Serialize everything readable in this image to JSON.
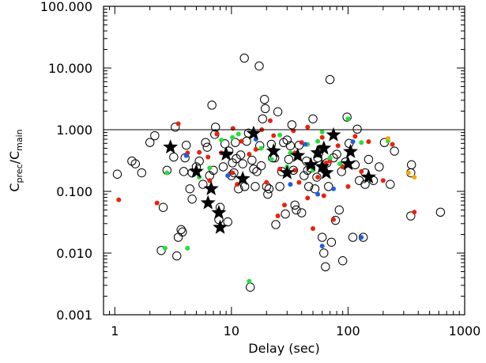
{
  "chart_data": {
    "type": "scatter",
    "x_scale": "log",
    "y_scale": "log",
    "xlim": [
      0.8,
      1000
    ],
    "ylim": [
      0.001,
      100
    ],
    "grid": false,
    "xlabel": "Delay (sec)",
    "ylabel": {
      "base": "C",
      "sub1": "prec",
      "sep": "/C",
      "sub2": "main"
    },
    "x_ticks": [
      {
        "value": 1,
        "label": "1"
      },
      {
        "value": 10,
        "label": "10"
      },
      {
        "value": 100,
        "label": "100"
      },
      {
        "value": 1000,
        "label": "1000"
      }
    ],
    "y_ticks": [
      {
        "value": 0.001,
        "label": "0.001"
      },
      {
        "value": 0.01,
        "label": "0.010"
      },
      {
        "value": 0.1,
        "label": "0.100"
      },
      {
        "value": 1,
        "label": "1.000"
      },
      {
        "value": 10,
        "label": "10.000"
      },
      {
        "value": 100,
        "label": "100.000"
      }
    ],
    "reference_line": {
      "y": 1
    },
    "colors": {
      "red": "#e8220e",
      "green": "#22e03c",
      "blue": "#1f5fe0",
      "orange": "#f5a800",
      "black": "#000000"
    },
    "series": [
      {
        "marker": "open-circle",
        "color": "#000000",
        "points": [
          [
            1.05,
            0.19
          ],
          [
            1.4,
            0.31
          ],
          [
            1.5,
            0.28
          ],
          [
            1.7,
            0.2
          ],
          [
            2,
            0.62
          ],
          [
            2.2,
            0.8
          ],
          [
            2.6,
            0.055
          ],
          [
            2.5,
            0.011
          ],
          [
            2.8,
            0.22
          ],
          [
            3.2,
            0.36
          ],
          [
            3.3,
            1.1
          ],
          [
            3.5,
            0.018
          ],
          [
            3.4,
            0.009
          ],
          [
            3.7,
            0.024
          ],
          [
            3.8,
            0.022
          ],
          [
            3.9,
            0.21
          ],
          [
            4,
            0.35
          ],
          [
            4.1,
            0.56
          ],
          [
            4.4,
            0.11
          ],
          [
            4.6,
            0.075
          ],
          [
            4.6,
            0.2
          ],
          [
            5,
            0.25
          ],
          [
            5.3,
            0.31
          ],
          [
            5.7,
            0.13
          ],
          [
            6,
            0.62
          ],
          [
            6.2,
            0.52
          ],
          [
            6.5,
            0.18
          ],
          [
            6.8,
            2.5
          ],
          [
            7,
            0.22
          ],
          [
            7.2,
            0.84
          ],
          [
            7.3,
            1.1
          ],
          [
            7.8,
            0.035
          ],
          [
            8,
            0.055
          ],
          [
            8.5,
            0.25
          ],
          [
            8.8,
            0.59
          ],
          [
            9.3,
            0.032
          ],
          [
            9.5,
            0.45
          ],
          [
            10,
            0.18
          ],
          [
            10.2,
            0.29
          ],
          [
            10.5,
            0.2
          ],
          [
            10.8,
            0.62
          ],
          [
            11,
            0.34
          ],
          [
            11.5,
            0.11
          ],
          [
            12,
            0.39
          ],
          [
            12.5,
            0.28
          ],
          [
            12.9,
            14.5
          ],
          [
            13,
            0.12
          ],
          [
            13.5,
            0.65
          ],
          [
            14,
            0.88
          ],
          [
            14.5,
            0.0028
          ],
          [
            15,
            0.32
          ],
          [
            15.5,
            0.23
          ],
          [
            16,
            0.12
          ],
          [
            16.5,
            0.21
          ],
          [
            17.3,
            10.8
          ],
          [
            17.5,
            0.55
          ],
          [
            18,
            0.26
          ],
          [
            18.5,
            1.5
          ],
          [
            19.2,
            3.1
          ],
          [
            19.5,
            2.2
          ],
          [
            20,
            0.12
          ],
          [
            20.5,
            0.09
          ],
          [
            21,
            0.11
          ],
          [
            22,
            0.58
          ],
          [
            22.5,
            0.35
          ],
          [
            23.5,
            0.35
          ],
          [
            24,
            0.029
          ],
          [
            25,
            1.95
          ],
          [
            26,
            0.12
          ],
          [
            27,
            0.21
          ],
          [
            28,
            0.62
          ],
          [
            29,
            0.043
          ],
          [
            30,
            0.68
          ],
          [
            31,
            0.33
          ],
          [
            32,
            0.55
          ],
          [
            33,
            1.2
          ],
          [
            34,
            0.22
          ],
          [
            35,
            0.06
          ],
          [
            36,
            0.05
          ],
          [
            38,
            0.56
          ],
          [
            40,
            0.045
          ],
          [
            42,
            0.18
          ],
          [
            44,
            0.31
          ],
          [
            46,
            0.12
          ],
          [
            48,
            0.24
          ],
          [
            50,
            1.5
          ],
          [
            52,
            0.11
          ],
          [
            54,
            0.17
          ],
          [
            56,
            0.42
          ],
          [
            58,
            0.48
          ],
          [
            60,
            0.018
          ],
          [
            62,
            0.01
          ],
          [
            64,
            0.006
          ],
          [
            66,
            0.29
          ],
          [
            68,
            0.12
          ],
          [
            70,
            6.5
          ],
          [
            72,
            0.015
          ],
          [
            75,
            0.35
          ],
          [
            78,
            0.034
          ],
          [
            80,
            0.4
          ],
          [
            84,
            0.05
          ],
          [
            88,
            0.21
          ],
          [
            90,
            0.0075
          ],
          [
            95,
            0.3
          ],
          [
            98,
            1.6
          ],
          [
            102,
            0.6
          ],
          [
            110,
            0.018
          ],
          [
            115,
            0.27
          ],
          [
            120,
            1.02
          ],
          [
            125,
            0.15
          ],
          [
            135,
            0.018
          ],
          [
            140,
            0.13
          ],
          [
            150,
            0.33
          ],
          [
            165,
            0.15
          ],
          [
            185,
            0.25
          ],
          [
            205,
            0.62
          ],
          [
            230,
            0.13
          ],
          [
            250,
            0.45
          ],
          [
            345,
            0.2
          ],
          [
            345,
            0.04
          ],
          [
            620,
            0.046
          ],
          [
            350,
            0.27
          ],
          [
            140,
            0.2
          ],
          [
            55,
            0.35
          ],
          [
            45,
            0.22
          ]
        ]
      },
      {
        "marker": "filled-circle",
        "color": "#e8220e",
        "points": [
          [
            1.08,
            0.073
          ],
          [
            2.3,
            0.065
          ],
          [
            3.5,
            1.25
          ],
          [
            4.2,
            0.42
          ],
          [
            5.3,
            0.43
          ],
          [
            6.3,
            0.36
          ],
          [
            6.5,
            0.15
          ],
          [
            7.5,
            0.85
          ],
          [
            8.2,
            0.42
          ],
          [
            10.2,
            0.2
          ],
          [
            10.3,
            1.05
          ],
          [
            11.2,
            0.13
          ],
          [
            12.2,
            0.65
          ],
          [
            14.2,
            0.4
          ],
          [
            16.2,
            0.48
          ],
          [
            18.2,
            1.0
          ],
          [
            21.5,
            1.4
          ],
          [
            23,
            0.8
          ],
          [
            26,
            0.23
          ],
          [
            28.5,
            0.06
          ],
          [
            30,
            0.21
          ],
          [
            34,
            0.96
          ],
          [
            35,
            0.42
          ],
          [
            38,
            0.14
          ],
          [
            40,
            0.62
          ],
          [
            45,
            0.078
          ],
          [
            50,
            0.025
          ],
          [
            55,
            0.17
          ],
          [
            60,
            0.75
          ],
          [
            62,
            0.085
          ],
          [
            65,
            0.29
          ],
          [
            70,
            0.31
          ],
          [
            75,
            0.035
          ],
          [
            82,
            0.55
          ],
          [
            90,
            0.25
          ],
          [
            100,
            0.12
          ],
          [
            115,
            0.78
          ],
          [
            130,
            0.21
          ],
          [
            150,
            0.64
          ],
          [
            200,
            0.15
          ],
          [
            240,
            0.58
          ],
          [
            370,
            0.046
          ],
          [
            45,
            1.1
          ],
          [
            35,
            0.22
          ],
          [
            25,
            0.04
          ],
          [
            20,
            0.14
          ]
        ]
      },
      {
        "marker": "filled-circle",
        "color": "#22e03c",
        "points": [
          [
            2.7,
            0.012
          ],
          [
            4.2,
            0.012
          ],
          [
            5.3,
            0.17
          ],
          [
            6.5,
            0.24
          ],
          [
            8.2,
            0.68
          ],
          [
            10.2,
            0.75
          ],
          [
            11.5,
            0.85
          ],
          [
            14.2,
            0.0035
          ],
          [
            18,
            0.5
          ],
          [
            22,
            0.33
          ],
          [
            26,
            0.82
          ],
          [
            30,
            0.25
          ],
          [
            32,
            0.42
          ],
          [
            38,
            0.35
          ],
          [
            45,
            0.58
          ],
          [
            50,
            0.22
          ],
          [
            55,
            0.65
          ],
          [
            60,
            0.92
          ],
          [
            70,
            0.35
          ],
          [
            85,
            0.28
          ],
          [
            100,
            1.5
          ],
          [
            130,
            0.62
          ],
          [
            220,
            0.66
          ],
          [
            2.8,
            0.2
          ],
          [
            9.2,
            0.4
          ]
        ]
      },
      {
        "marker": "filled-circle",
        "color": "#1f5fe0",
        "points": [
          [
            4.1,
            0.38
          ],
          [
            9.3,
            0.18
          ],
          [
            16.2,
            0.7
          ],
          [
            32,
            0.13
          ],
          [
            43,
            0.58
          ],
          [
            55,
            0.09
          ],
          [
            60,
            0.013
          ],
          [
            75,
            0.11
          ],
          [
            110,
            0.64
          ],
          [
            130,
            0.018
          ]
        ]
      },
      {
        "marker": "filled-circle",
        "color": "#f5a800",
        "points": [
          [
            220,
            0.72
          ],
          [
            330,
            0.2
          ],
          [
            370,
            0.17
          ]
        ]
      },
      {
        "marker": "filled-star",
        "color": "#000000",
        "points": [
          [
            3,
            0.52
          ],
          [
            5,
            0.21
          ],
          [
            6.3,
            0.065
          ],
          [
            6.7,
            0.11
          ],
          [
            7.8,
            0.045
          ],
          [
            8,
            0.026
          ],
          [
            9,
            0.4
          ],
          [
            12.5,
            0.16
          ],
          [
            15.5,
            0.87
          ],
          [
            23,
            0.45
          ],
          [
            30,
            0.2
          ],
          [
            37,
            0.38
          ],
          [
            48,
            0.27
          ],
          [
            55,
            0.42
          ],
          [
            60,
            0.25
          ],
          [
            62,
            0.5
          ],
          [
            65,
            0.2
          ],
          [
            75,
            0.82
          ],
          [
            100,
            0.28
          ],
          [
            105,
            0.44
          ],
          [
            150,
            0.17
          ]
        ]
      }
    ]
  }
}
